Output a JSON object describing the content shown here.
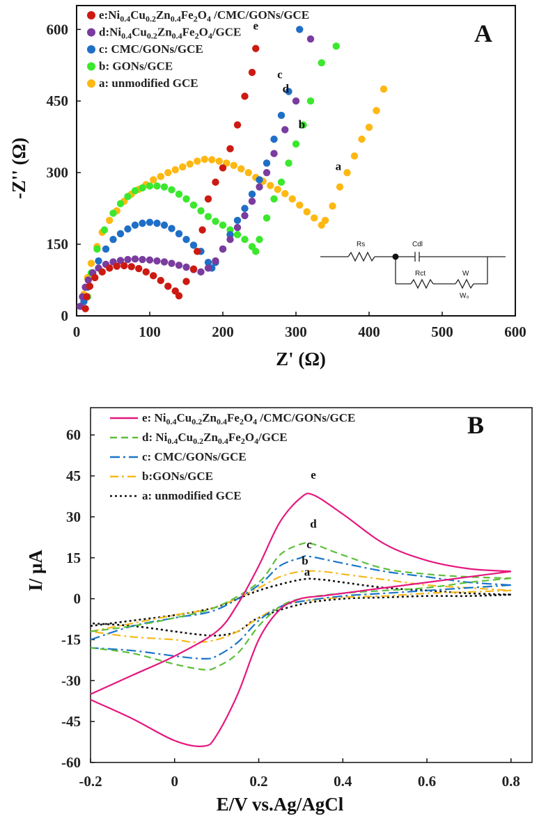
{
  "chart_data": [
    {
      "panel_label": "A",
      "type": "scatter",
      "xlabel": "Z' (Ω)",
      "ylabel": "-Z'' (Ω)",
      "xlim": [
        0,
        600
      ],
      "ylim": [
        0,
        650
      ],
      "x_ticks": [
        "0",
        "100",
        "200",
        "300",
        "400",
        "500",
        "600"
      ],
      "y_ticks": [
        "0",
        "150",
        "300",
        "450",
        "600"
      ],
      "legend_position": "top-left",
      "series": [
        {
          "name": "e:Ni0.4Cu0.2Zn0.4Fe2O4 /CMC/GONs/GCE",
          "legend_parts": [
            "e:Ni",
            "0.4",
            "Cu",
            "0.2",
            "Zn",
            "0.4",
            "Fe",
            "2",
            "O",
            "4",
            " /CMC/GONs/GCE"
          ],
          "curve_label": "e",
          "color": "#cc1a12",
          "x": [
            12,
            14,
            18,
            25,
            35,
            45,
            55,
            65,
            75,
            85,
            95,
            105,
            115,
            125,
            135,
            140,
            150,
            160,
            165,
            172,
            180,
            190,
            200,
            210,
            220,
            230,
            240,
            245
          ],
          "y": [
            15,
            40,
            62,
            80,
            92,
            100,
            104,
            105,
            103,
            99,
            92,
            84,
            74,
            62,
            52,
            42,
            72,
            98,
            135,
            180,
            245,
            280,
            310,
            350,
            400,
            460,
            510,
            560
          ]
        },
        {
          "name": "d:Ni0.4Cu0.2Zn0.4Fe2O4/GCE",
          "legend_parts": [
            "d:Ni",
            "0.4",
            "Cu",
            "0.2",
            "Zn",
            "0.4",
            "Fe",
            "2",
            "O",
            "4",
            "/GCE"
          ],
          "curve_label": "d",
          "color": "#7a3c9e",
          "x": [
            5,
            8,
            12,
            16,
            22,
            30,
            40,
            50,
            60,
            70,
            80,
            90,
            100,
            110,
            120,
            130,
            140,
            150,
            160,
            170,
            180,
            190,
            200,
            210,
            220,
            230,
            240,
            250,
            260,
            270,
            285,
            300,
            320
          ],
          "y": [
            20,
            40,
            60,
            75,
            90,
            100,
            108,
            113,
            116,
            118,
            119,
            118,
            117,
            115,
            113,
            110,
            106,
            102,
            97,
            92,
            100,
            115,
            140,
            160,
            185,
            210,
            240,
            270,
            300,
            340,
            390,
            450,
            580
          ]
        },
        {
          "name": "c: CMC/GONs/GCE",
          "legend_parts": [
            "c: CMC/GONs/GCE"
          ],
          "curve_label": "c",
          "color": "#1f6fc6",
          "x": [
            10,
            15,
            22,
            30,
            40,
            50,
            60,
            70,
            80,
            90,
            100,
            110,
            120,
            130,
            140,
            150,
            160,
            170,
            180,
            185,
            190,
            200,
            210,
            220,
            230,
            240,
            250,
            260,
            270,
            280,
            290,
            305
          ],
          "y": [
            30,
            60,
            90,
            115,
            140,
            160,
            172,
            182,
            190,
            194,
            196,
            194,
            190,
            183,
            172,
            160,
            148,
            135,
            112,
            100,
            112,
            140,
            170,
            200,
            225,
            255,
            285,
            320,
            370,
            420,
            470,
            600
          ]
        },
        {
          "name": "b: GONs/GCE",
          "legend_parts": [
            "b: GONs/GCE"
          ],
          "curve_label": "b",
          "color": "#3be82d",
          "x": [
            15,
            20,
            28,
            38,
            50,
            60,
            70,
            80,
            90,
            100,
            110,
            120,
            130,
            140,
            150,
            160,
            170,
            180,
            190,
            200,
            210,
            220,
            230,
            240,
            245,
            250,
            260,
            270,
            280,
            290,
            300,
            310,
            320,
            335,
            355
          ],
          "y": [
            40,
            90,
            140,
            180,
            215,
            235,
            250,
            262,
            268,
            272,
            272,
            270,
            264,
            255,
            245,
            232,
            220,
            208,
            198,
            190,
            180,
            170,
            160,
            145,
            135,
            160,
            205,
            245,
            280,
            320,
            360,
            400,
            450,
            530,
            565
          ]
        },
        {
          "name": "a: unmodified GCE",
          "legend_parts": [
            "a: unmodified GCE"
          ],
          "curve_label": "a",
          "color": "#fdb813",
          "x": [
            10,
            15,
            20,
            28,
            35,
            45,
            55,
            65,
            75,
            85,
            95,
            105,
            115,
            125,
            135,
            145,
            155,
            165,
            175,
            185,
            195,
            205,
            215,
            225,
            235,
            245,
            255,
            265,
            275,
            285,
            295,
            305,
            315,
            325,
            335,
            340,
            350,
            360,
            370,
            380,
            390,
            400,
            410,
            420
          ],
          "y": [
            45,
            80,
            110,
            145,
            175,
            200,
            220,
            240,
            255,
            265,
            275,
            285,
            292,
            300,
            306,
            312,
            318,
            324,
            328,
            327,
            324,
            320,
            315,
            308,
            300,
            290,
            282,
            273,
            265,
            256,
            245,
            232,
            218,
            205,
            190,
            200,
            230,
            270,
            300,
            335,
            370,
            395,
            430,
            475
          ]
        }
      ],
      "inset_circuit_labels": [
        "Rs",
        "Cdl",
        "Rct",
        "W",
        "W₀"
      ]
    },
    {
      "panel_label": "B",
      "type": "line",
      "xlabel": "E/V vs.Ag/AgCl",
      "ylabel": "I/ μA",
      "xlim": [
        -0.2,
        0.85
      ],
      "ylim": [
        -60,
        70
      ],
      "x_ticks": [
        "-0.2",
        "0",
        "0.2",
        "0.4",
        "0.6",
        "0.8"
      ],
      "y_ticks": [
        "60",
        "45",
        "30",
        "15",
        "0",
        "-15",
        "-30",
        "-45",
        "-60"
      ],
      "legend_position": "top-left",
      "series": [
        {
          "name": "e: Ni0.4Cu0.2Zn0.4Fe2O4 /CMC/GONs/GCE",
          "legend_parts": [
            "e: Ni",
            "0.4",
            "Cu",
            "0.2",
            "Zn",
            "0.4",
            "Fe",
            "2",
            "O",
            "4",
            " /CMC/GONs/GCE"
          ],
          "curve_label": "e",
          "color": "#e5177e",
          "dash": "",
          "forward": {
            "x": [
              -0.2,
              -0.1,
              0,
              0.1,
              0.15,
              0.2,
              0.25,
              0.3,
              0.33,
              0.4,
              0.5,
              0.6,
              0.7,
              0.8
            ],
            "y": [
              -35,
              -28,
              -21,
              -12,
              -2,
              12,
              28,
              37,
              38,
              31,
              20,
              14,
              11,
              10
            ]
          },
          "reverse": {
            "x": [
              0.8,
              0.7,
              0.6,
              0.5,
              0.4,
              0.35,
              0.3,
              0.25,
              0.2,
              0.15,
              0.1,
              0.07,
              0.0,
              -0.1,
              -0.2
            ],
            "y": [
              10,
              8,
              6,
              4,
              2,
              1,
              0,
              -4,
              -15,
              -35,
              -50,
              -54,
              -52,
              -44,
              -37
            ]
          }
        },
        {
          "name": "d: Ni0.4Cu0.2Zn0.4Fe2O4/GCE",
          "legend_parts": [
            "d: Ni",
            "0.4",
            "Cu",
            "0.2",
            "Zn",
            "0.4",
            "Fe",
            "2",
            "O",
            "4",
            "/GCE"
          ],
          "curve_label": "d",
          "color": "#5cbf3a",
          "dash": "10 6",
          "forward": {
            "x": [
              -0.2,
              -0.1,
              0,
              0.1,
              0.2,
              0.25,
              0.3,
              0.33,
              0.4,
              0.5,
              0.6,
              0.7,
              0.8
            ],
            "y": [
              -12,
              -10,
              -7,
              -3,
              6,
              16,
              20,
              20,
              16,
              11,
              9,
              8,
              7.5
            ]
          },
          "reverse": {
            "x": [
              0.8,
              0.7,
              0.6,
              0.5,
              0.4,
              0.3,
              0.25,
              0.2,
              0.15,
              0.1,
              0.07,
              0.0,
              -0.1,
              -0.2
            ],
            "y": [
              7.5,
              6,
              4,
              3,
              2,
              0,
              -3,
              -10,
              -20,
              -25,
              -26,
              -24,
              -20,
              -18
            ]
          }
        },
        {
          "name": "c: CMC/GONs/GCE",
          "legend_parts": [
            "c: CMC/GONs/GCE"
          ],
          "curve_label": "c",
          "color": "#1a75c9",
          "dash": "14 5 3 5",
          "forward": {
            "x": [
              -0.2,
              -0.1,
              0,
              0.1,
              0.2,
              0.25,
              0.3,
              0.32,
              0.4,
              0.5,
              0.6,
              0.7,
              0.8
            ],
            "y": [
              -15,
              -10,
              -7,
              -4,
              5,
              12,
              15,
              15.5,
              13,
              10,
              8,
              6,
              5
            ]
          },
          "reverse": {
            "x": [
              0.8,
              0.7,
              0.6,
              0.5,
              0.4,
              0.3,
              0.25,
              0.2,
              0.15,
              0.1,
              0.07,
              0.0,
              -0.1,
              -0.2
            ],
            "y": [
              5,
              4,
              3,
              2,
              1,
              -1,
              -3,
              -8,
              -16,
              -21,
              -22,
              -21,
              -19,
              -18
            ]
          }
        },
        {
          "name": "b:GONs/GCE",
          "legend_parts": [
            "b:GONs/GCE"
          ],
          "curve_label": "b",
          "color": "#f6b91a",
          "dash": "12 5 3 5",
          "forward": {
            "x": [
              -0.2,
              -0.1,
              0,
              0.1,
              0.2,
              0.25,
              0.3,
              0.35,
              0.4,
              0.5,
              0.6,
              0.7,
              0.8
            ],
            "y": [
              -12,
              -9,
              -6,
              -3,
              4,
              8,
              10,
              10,
              9,
              7,
              5,
              4,
              3
            ]
          },
          "reverse": {
            "x": [
              0.8,
              0.7,
              0.6,
              0.5,
              0.4,
              0.3,
              0.25,
              0.2,
              0.15,
              0.1,
              0.05,
              0.0,
              -0.1,
              -0.2
            ],
            "y": [
              3,
              2.5,
              2,
              1,
              0.5,
              -1,
              -3,
              -7,
              -12,
              -15,
              -16,
              -15,
              -14,
              -12
            ]
          }
        },
        {
          "name": "a: unmodified GCE",
          "legend_parts": [
            "a: unmodified GCE"
          ],
          "curve_label": "a",
          "color": "#111111",
          "dash": "3 4",
          "forward": {
            "x": [
              -0.2,
              -0.1,
              0,
              0.1,
              0.2,
              0.3,
              0.35,
              0.4,
              0.5,
              0.6,
              0.7,
              0.8
            ],
            "y": [
              -10,
              -8,
              -6,
              -3,
              3,
              7,
              7,
              6,
              4,
              3,
              2,
              1.5
            ]
          },
          "reverse": {
            "x": [
              0.8,
              0.7,
              0.6,
              0.5,
              0.4,
              0.3,
              0.2,
              0.15,
              0.1,
              0.05,
              0.0,
              -0.1,
              -0.2
            ],
            "y": [
              1.5,
              1,
              1,
              0.5,
              0,
              -2,
              -7,
              -12,
              -13.5,
              -13,
              -12,
              -10,
              -9
            ]
          }
        }
      ]
    }
  ]
}
